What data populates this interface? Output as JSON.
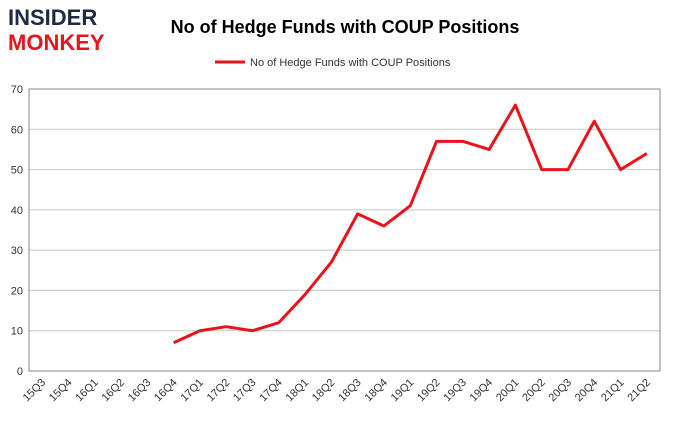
{
  "logo": {
    "line1": "INSIDER",
    "line2": "MONKEY"
  },
  "chart_data": {
    "type": "line",
    "title": "No of Hedge Funds with COUP Positions",
    "categories": [
      "15Q3",
      "15Q4",
      "16Q1",
      "16Q2",
      "16Q3",
      "16Q4",
      "17Q1",
      "17Q2",
      "17Q3",
      "17Q4",
      "18Q1",
      "18Q2",
      "18Q3",
      "18Q4",
      "19Q1",
      "19Q2",
      "19Q3",
      "19Q4",
      "20Q1",
      "20Q2",
      "20Q3",
      "20Q4",
      "21Q1",
      "21Q2"
    ],
    "series": [
      {
        "name": "No of Hedge Funds with COUP Positions",
        "color": "#e8141b",
        "values": [
          null,
          null,
          null,
          null,
          null,
          7,
          10,
          11,
          10,
          12,
          19,
          27,
          39,
          36,
          41,
          57,
          57,
          55,
          66,
          50,
          50,
          62,
          50,
          54
        ]
      }
    ],
    "ylim": [
      0,
      70
    ],
    "yticks": [
      0,
      10,
      20,
      30,
      40,
      50,
      60,
      70
    ],
    "grid": true,
    "legend": "top"
  }
}
